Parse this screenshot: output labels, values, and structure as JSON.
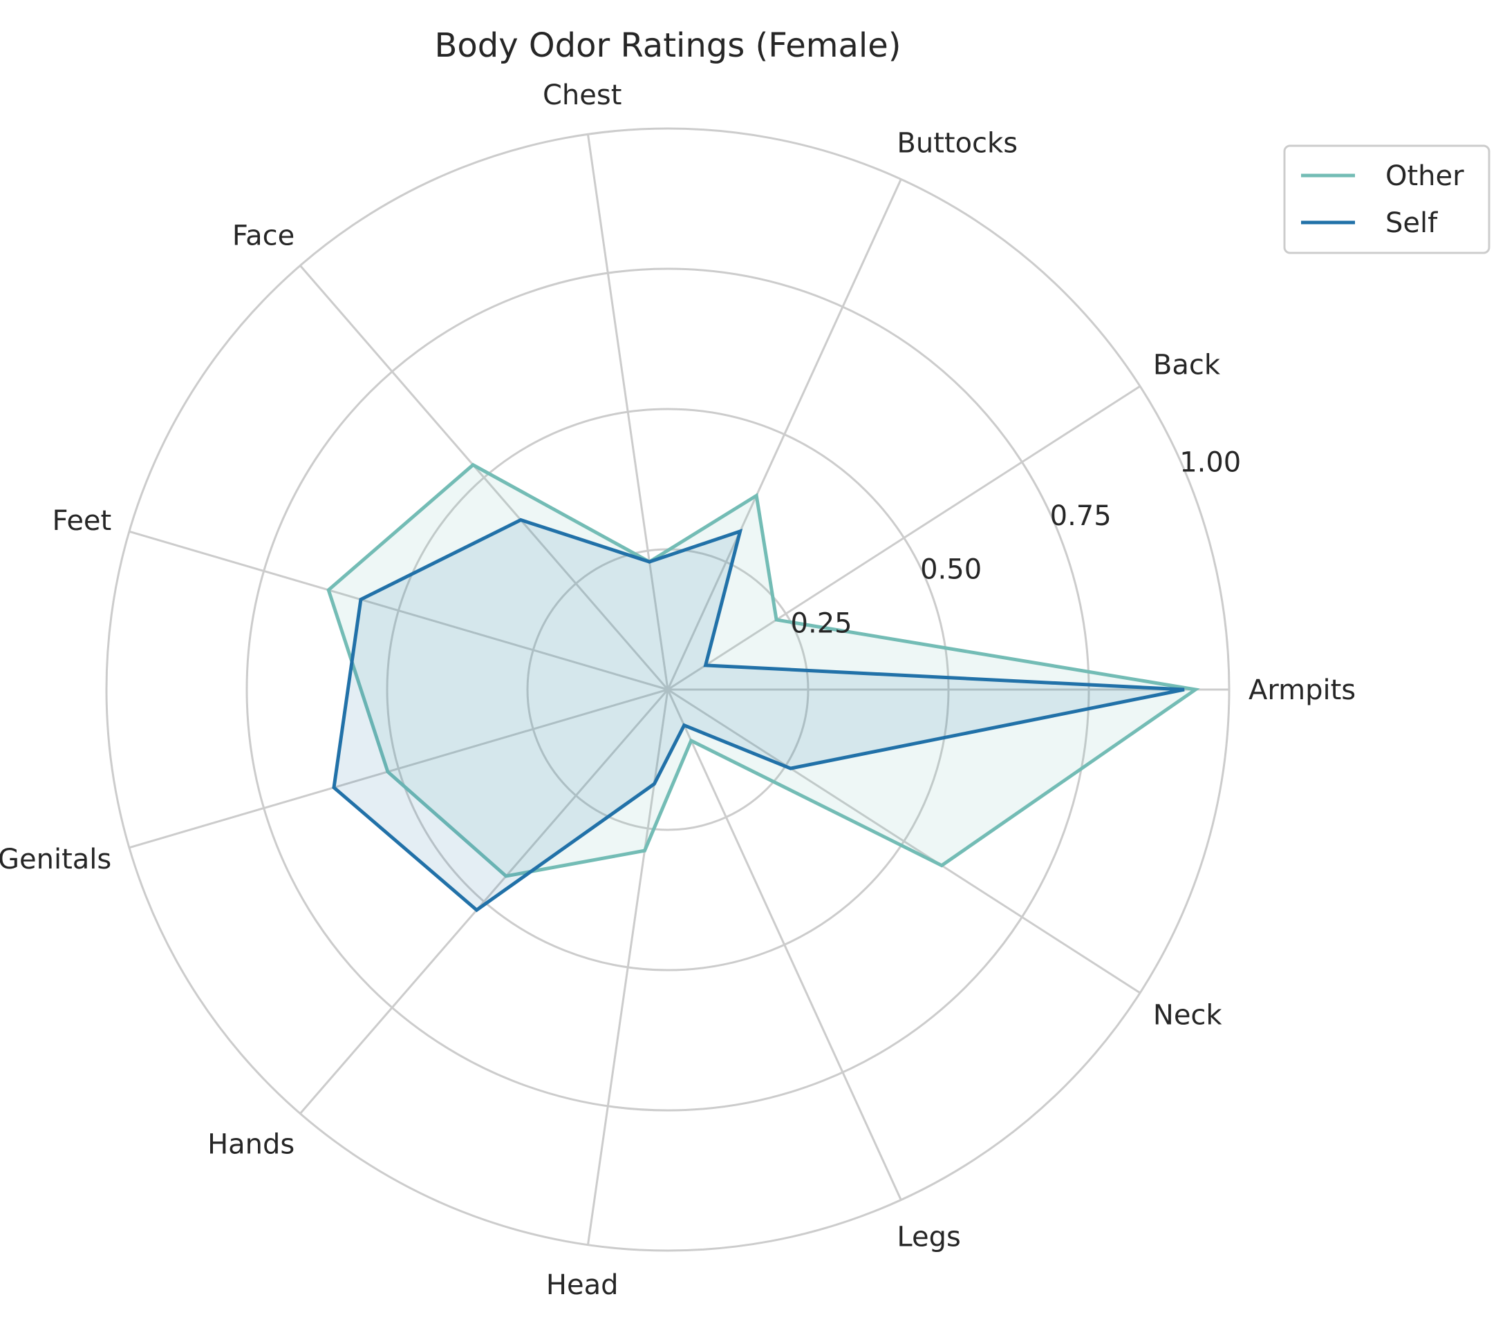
{
  "chart_data": {
    "type": "radar",
    "title": "Body Odor Ratings (Female)",
    "categories": [
      "Armpits",
      "Back",
      "Buttocks",
      "Chest",
      "Face",
      "Feet",
      "Genitals",
      "Hands",
      "Head",
      "Legs",
      "Neck"
    ],
    "rlim": [
      0,
      1
    ],
    "rticks": [
      0.25,
      0.5,
      0.75,
      1.0
    ],
    "rtick_labels": [
      "0.25",
      "0.50",
      "0.75",
      "1.00"
    ],
    "grid": true,
    "legend_position": "top-right",
    "series": [
      {
        "name": "Other",
        "color": "#73bcb5",
        "values": [
          0.94,
          0.23,
          0.38,
          0.23,
          0.53,
          0.63,
          0.52,
          0.44,
          0.29,
          0.1,
          0.58
        ]
      },
      {
        "name": "Self",
        "color": "#2171a8",
        "values": [
          0.92,
          0.08,
          0.31,
          0.23,
          0.4,
          0.57,
          0.62,
          0.52,
          0.17,
          0.07,
          0.26
        ]
      }
    ]
  }
}
